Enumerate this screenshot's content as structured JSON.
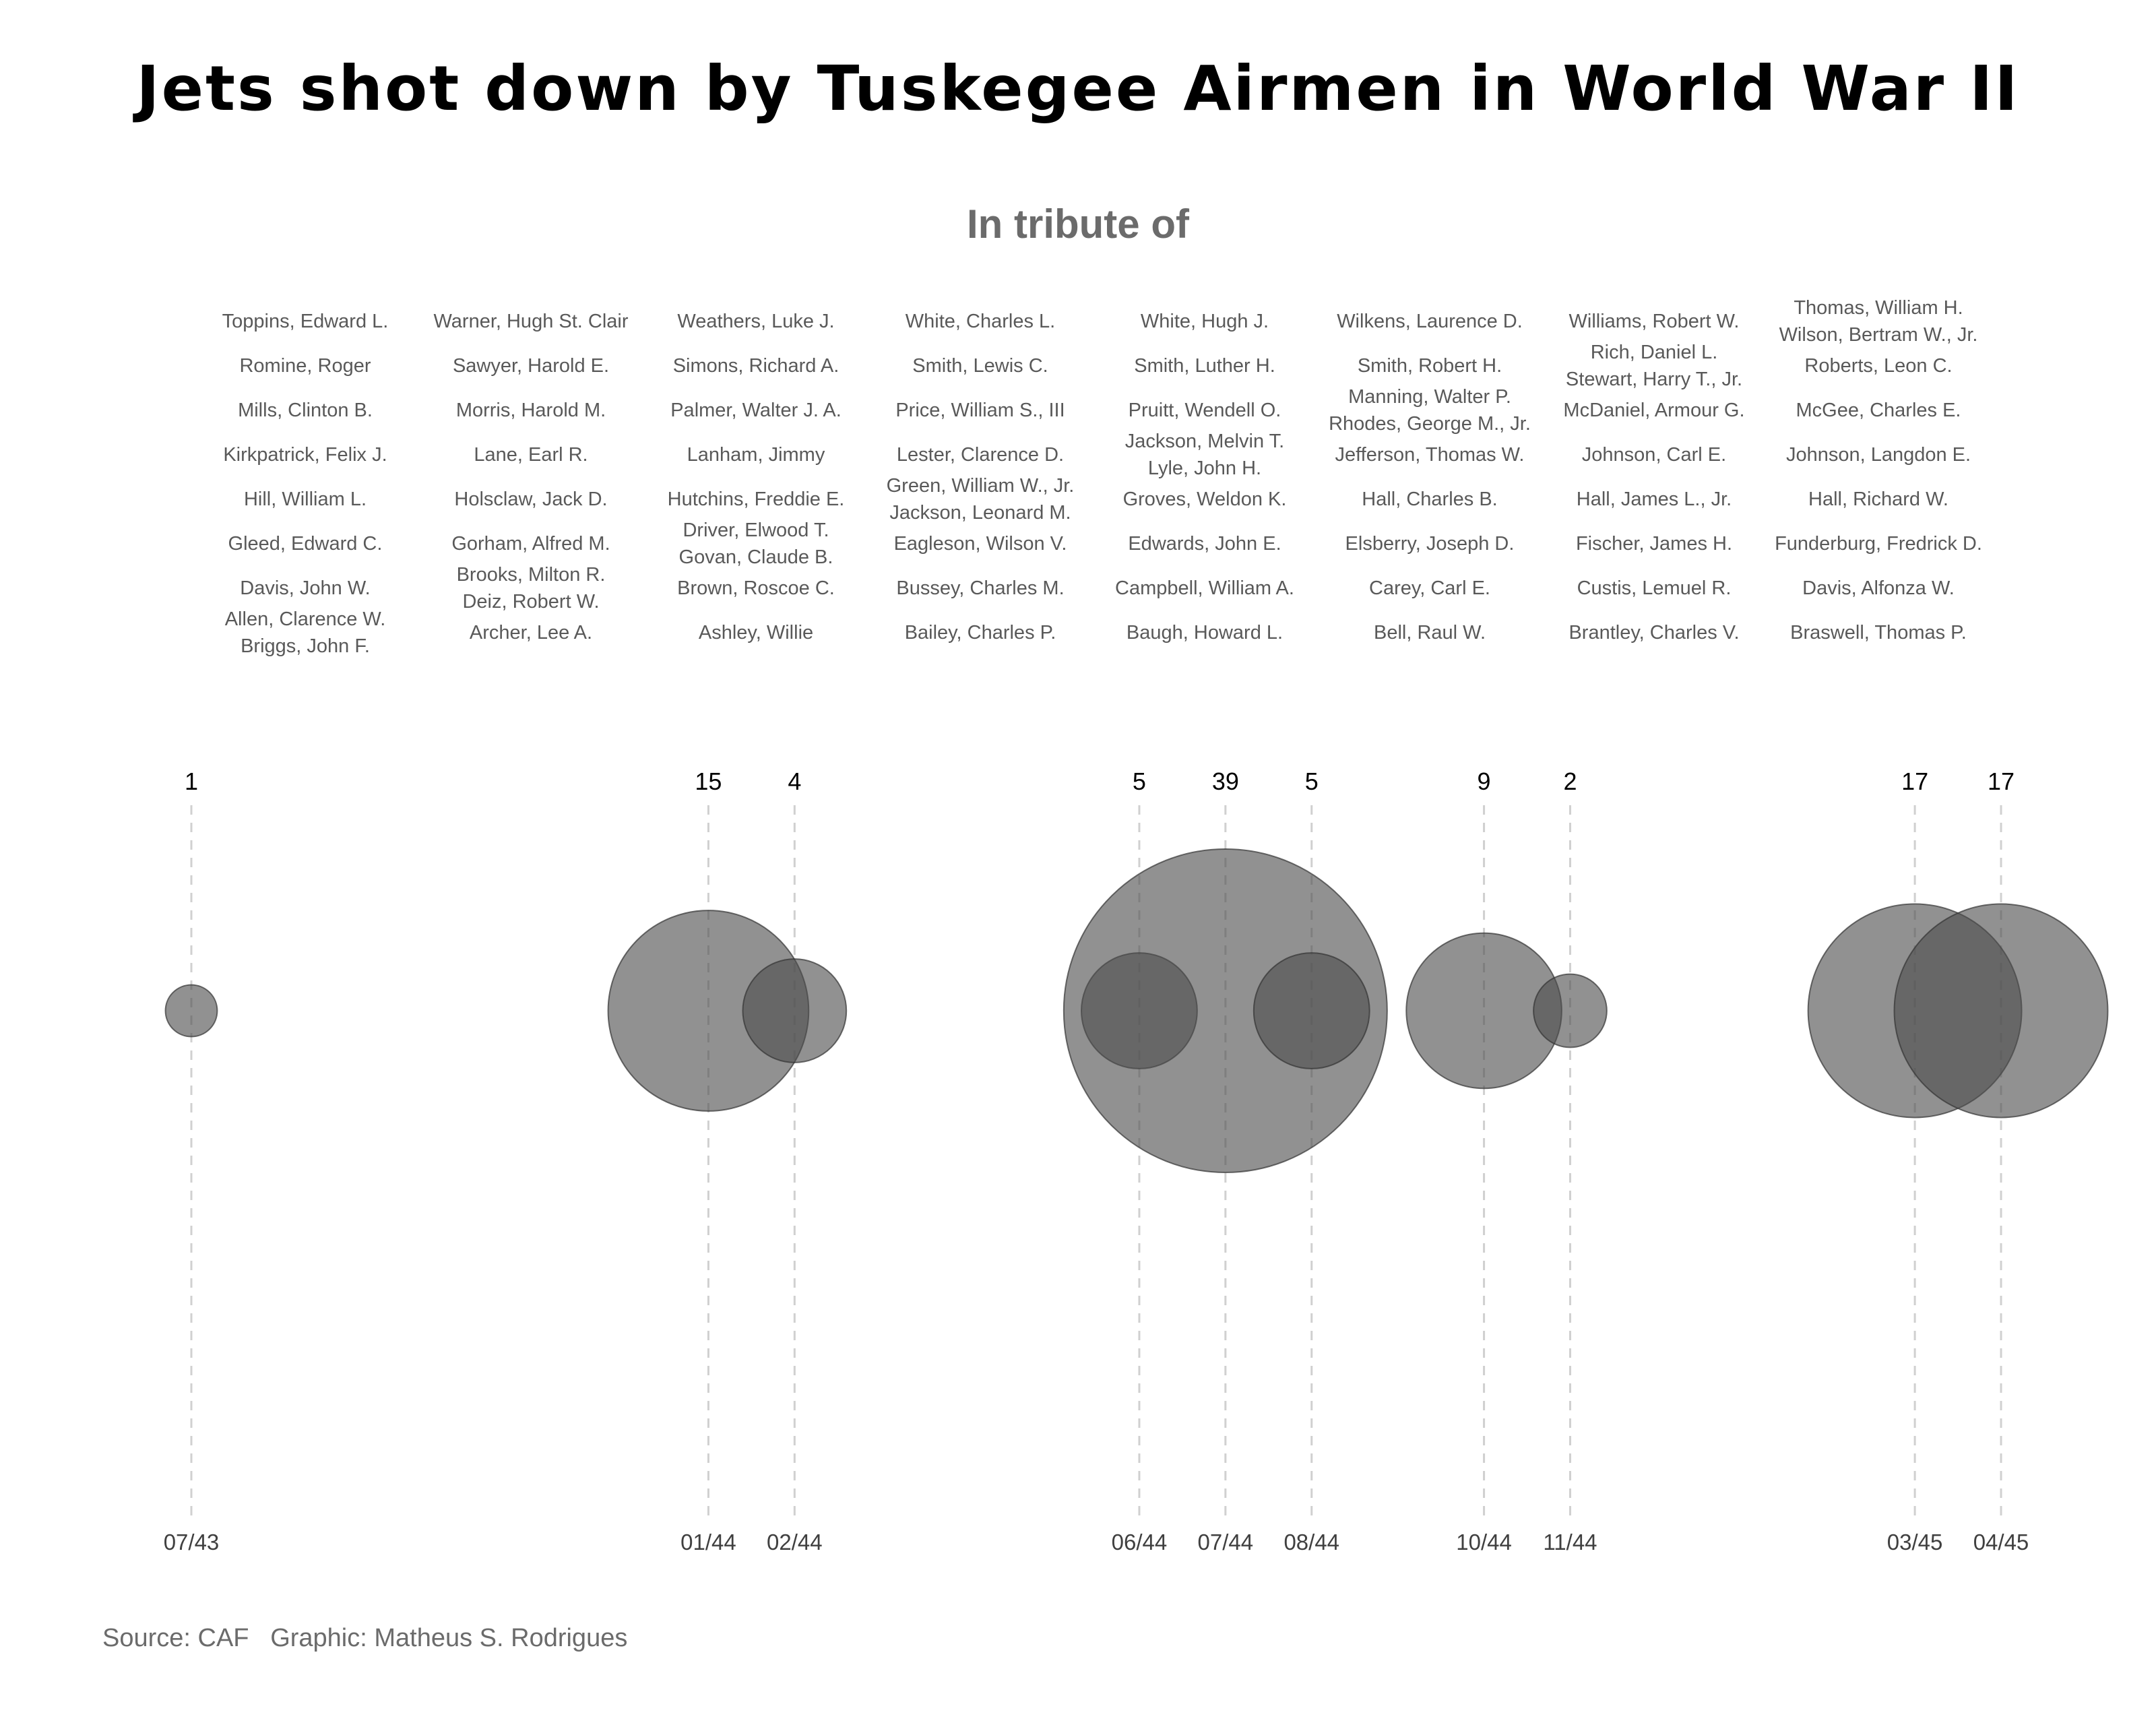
{
  "title": "Jets shot down by Tuskegee Airmen in World War II",
  "subtitle": "In tribute of",
  "source_text": "Source: CAF   Graphic: Matheus S. Rodrigues",
  "colors": {
    "bubble": "#4d4d4d",
    "bubble_stroke": "#333333",
    "gridline": "#d0d0d0",
    "names": "#595959",
    "tick": "#404040",
    "count": "#000000"
  },
  "chart_data": {
    "type": "bubble",
    "title": "Jets shot down by Tuskegee Airmen in World War II",
    "subtitle": "In tribute of",
    "x_axis": {
      "type": "date",
      "range": [
        "1943-07",
        "1945-04"
      ]
    },
    "points": [
      {
        "date": "1943-07",
        "label": "07/43",
        "count": 1
      },
      {
        "date": "1944-01",
        "label": "01/44",
        "count": 15
      },
      {
        "date": "1944-02",
        "label": "02/44",
        "count": 4
      },
      {
        "date": "1944-06",
        "label": "06/44",
        "count": 5
      },
      {
        "date": "1944-07",
        "label": "07/44",
        "count": 39
      },
      {
        "date": "1944-08",
        "label": "08/44",
        "count": 5
      },
      {
        "date": "1944-10",
        "label": "10/44",
        "count": 9
      },
      {
        "date": "1944-11",
        "label": "11/44",
        "count": 2
      },
      {
        "date": "1945-03",
        "label": "03/45",
        "count": 17
      },
      {
        "date": "1945-04",
        "label": "04/45",
        "count": 17
      }
    ],
    "names_grid": [
      [
        "Toppins, Edward L.",
        "Warner, Hugh St. Clair",
        "Weathers, Luke J.",
        "White, Charles L.",
        "White, Hugh J.",
        "Wilkens, Laurence D.",
        "Williams, Robert W.",
        "Thomas, William H.\nWilson, Bertram W., Jr."
      ],
      [
        "Romine, Roger",
        "Sawyer, Harold E.",
        "Simons, Richard A.",
        "Smith, Lewis C.",
        "Smith, Luther H.",
        "Smith, Robert H.",
        "Rich, Daniel L.\nStewart, Harry T., Jr.",
        "Roberts, Leon C."
      ],
      [
        "Mills, Clinton B.",
        "Morris, Harold M.",
        "Palmer, Walter J. A.",
        "Price, William S., III",
        "Pruitt, Wendell O.",
        "Manning, Walter P.\nRhodes, George M., Jr.",
        "McDaniel, Armour G.",
        "McGee, Charles E."
      ],
      [
        "Kirkpatrick, Felix J.",
        "Lane, Earl R.",
        "Lanham, Jimmy",
        "Lester, Clarence D.",
        "Jackson, Melvin T.\nLyle, John H.",
        "Jefferson, Thomas W.",
        "Johnson, Carl E.",
        "Johnson, Langdon E."
      ],
      [
        "Hill, William L.",
        "Holsclaw, Jack D.",
        "Hutchins, Freddie E.",
        "Green, William W., Jr.\nJackson, Leonard M.",
        "Groves, Weldon K.",
        "Hall, Charles B.",
        "Hall, James L., Jr.",
        "Hall, Richard W."
      ],
      [
        "Gleed, Edward C.",
        "Gorham, Alfred M.",
        "Driver, Elwood T.\nGovan, Claude B.",
        "Eagleson, Wilson V.",
        "Edwards, John E.",
        "Elsberry, Joseph D.",
        "Fischer, James H.",
        "Funderburg, Fredrick D."
      ],
      [
        "Davis, John W.",
        "Brooks, Milton R.\nDeiz, Robert W.",
        "Brown, Roscoe C.",
        "Bussey, Charles M.",
        "Campbell, William A.",
        "Carey, Carl E.",
        "Custis, Lemuel R.",
        "Davis, Alfonza W."
      ],
      [
        "Allen, Clarence W.\nBriggs, John F.",
        "Archer, Lee A.",
        "Ashley, Willie",
        "Bailey, Charles P.",
        "Baugh, Howard L.",
        "Bell, Raul W.",
        "Brantley, Charles V.",
        "Braswell, Thomas P."
      ]
    ]
  }
}
